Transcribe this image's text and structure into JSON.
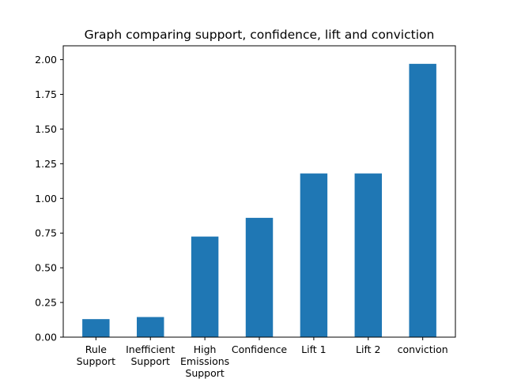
{
  "chart_data": {
    "type": "bar",
    "title": "Graph comparing support, confidence, lift and conviction",
    "categories": [
      [
        "Rule",
        "Support"
      ],
      [
        "Inefficient",
        "Support"
      ],
      [
        "High",
        "Emissions",
        "Support"
      ],
      [
        "Confidence"
      ],
      [
        "Lift 1"
      ],
      [
        "Lift 2"
      ],
      [
        "conviction"
      ]
    ],
    "values": [
      0.13,
      0.145,
      0.725,
      0.86,
      1.18,
      1.18,
      1.97
    ],
    "ylim": [
      0,
      2.1
    ],
    "yticks": [
      0.0,
      0.25,
      0.5,
      0.75,
      1.0,
      1.25,
      1.5,
      1.75,
      2.0
    ],
    "ytick_labels": [
      "0.00",
      "0.25",
      "0.50",
      "0.75",
      "1.00",
      "1.25",
      "1.50",
      "1.75",
      "2.00"
    ],
    "xlabel": "",
    "ylabel": "",
    "grid": false,
    "bar_color": "#1f77b4"
  }
}
